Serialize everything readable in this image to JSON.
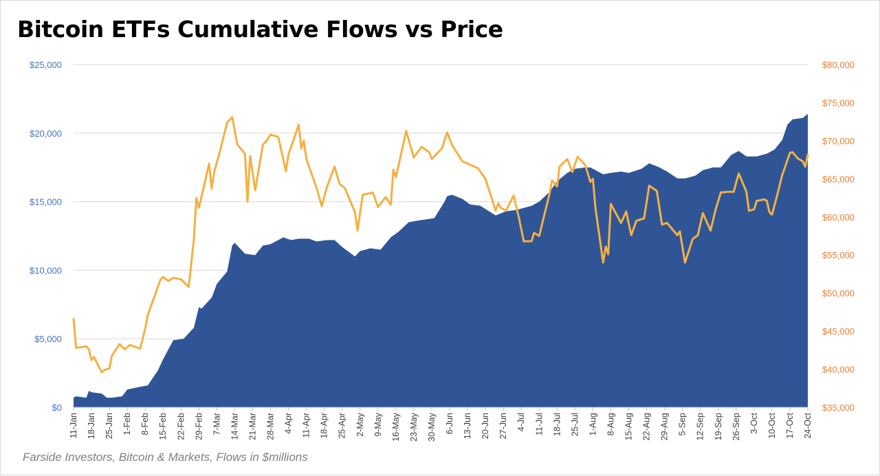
{
  "title": "Bitcoin ETFs Cumulative Flows vs Price",
  "footnote": "Farside Investors, Bitcoin & Markets, Flows in $millions",
  "colors": {
    "flows": "#2f5597",
    "price": "#f4b042",
    "left_axis": "#4472c4",
    "right_axis": "#ed7d31",
    "grid": "#d9d9d9"
  },
  "chart_data": {
    "type": "area",
    "title": "Bitcoin ETFs Cumulative Flows vs Price",
    "xlabel": "",
    "ylabel": "",
    "grid": true,
    "legend": "none",
    "x_tick_labels": [
      "11-Jan",
      "18-Jan",
      "25-Jan",
      "1-Feb",
      "8-Feb",
      "15-Feb",
      "22-Feb",
      "29-Feb",
      "7-Mar",
      "14-Mar",
      "21-Mar",
      "28-Mar",
      "4-Apr",
      "11-Apr",
      "18-Apr",
      "25-Apr",
      "2-May",
      "9-May",
      "16-May",
      "23-May",
      "30-May",
      "6-Jun",
      "13-Jun",
      "20-Jun",
      "27-Jun",
      "4-Jul",
      "11-Jul",
      "18-Jul",
      "25-Jul",
      "1-Aug",
      "8-Aug",
      "15-Aug",
      "22-Aug",
      "29-Aug",
      "5-Sep",
      "12-Sep",
      "19-Sep",
      "26-Sep",
      "3-Oct",
      "10-Oct",
      "17-Oct",
      "24-Oct"
    ],
    "x_range": [
      "2024-01-11",
      "2024-10-24"
    ],
    "y_left": {
      "ticks": [
        "$0",
        "$5,000",
        "$10,000",
        "$15,000",
        "$20,000",
        "$25,000"
      ],
      "ylim": [
        0,
        25000
      ]
    },
    "y_right": {
      "ticks": [
        "$35,000",
        "$40,000",
        "$45,000",
        "$50,000",
        "$55,000",
        "$60,000",
        "$65,000",
        "$70,000",
        "$75,000",
        "$80,000"
      ],
      "ylim": [
        35000,
        80000
      ]
    },
    "series": [
      {
        "kind": "area",
        "axis": "left",
        "points": [
          [
            "2024-01-11",
            700
          ],
          [
            "2024-01-12",
            800
          ],
          [
            "2024-01-16",
            700
          ],
          [
            "2024-01-17",
            1200
          ],
          [
            "2024-01-18",
            1100
          ],
          [
            "2024-01-22",
            1000
          ],
          [
            "2024-01-24",
            700
          ],
          [
            "2024-01-26",
            700
          ],
          [
            "2024-01-30",
            800
          ],
          [
            "2024-02-01",
            1300
          ],
          [
            "2024-02-06",
            1500
          ],
          [
            "2024-02-09",
            1600
          ],
          [
            "2024-02-13",
            2700
          ],
          [
            "2024-02-15",
            3500
          ],
          [
            "2024-02-19",
            4900
          ],
          [
            "2024-02-23",
            5000
          ],
          [
            "2024-02-27",
            5800
          ],
          [
            "2024-02-29",
            7300
          ],
          [
            "2024-03-01",
            7200
          ],
          [
            "2024-03-05",
            8000
          ],
          [
            "2024-03-07",
            9000
          ],
          [
            "2024-03-11",
            9900
          ],
          [
            "2024-03-13",
            11800
          ],
          [
            "2024-03-14",
            12000
          ],
          [
            "2024-03-18",
            11200
          ],
          [
            "2024-03-22",
            11100
          ],
          [
            "2024-03-25",
            11800
          ],
          [
            "2024-03-28",
            11900
          ],
          [
            "2024-04-02",
            12400
          ],
          [
            "2024-04-05",
            12200
          ],
          [
            "2024-04-08",
            12300
          ],
          [
            "2024-04-12",
            12300
          ],
          [
            "2024-04-15",
            12100
          ],
          [
            "2024-04-19",
            12200
          ],
          [
            "2024-04-22",
            12200
          ],
          [
            "2024-04-25",
            11700
          ],
          [
            "2024-04-30",
            11000
          ],
          [
            "2024-05-02",
            11400
          ],
          [
            "2024-05-06",
            11600
          ],
          [
            "2024-05-10",
            11500
          ],
          [
            "2024-05-14",
            12400
          ],
          [
            "2024-05-17",
            12800
          ],
          [
            "2024-05-21",
            13500
          ],
          [
            "2024-05-24",
            13600
          ],
          [
            "2024-05-31",
            13800
          ],
          [
            "2024-06-04",
            15000
          ],
          [
            "2024-06-05",
            15400
          ],
          [
            "2024-06-07",
            15500
          ],
          [
            "2024-06-11",
            15200
          ],
          [
            "2024-06-14",
            14800
          ],
          [
            "2024-06-18",
            14700
          ],
          [
            "2024-06-24",
            14000
          ],
          [
            "2024-06-28",
            14300
          ],
          [
            "2024-07-02",
            14400
          ],
          [
            "2024-07-08",
            14700
          ],
          [
            "2024-07-11",
            15000
          ],
          [
            "2024-07-15",
            15700
          ],
          [
            "2024-07-18",
            16500
          ],
          [
            "2024-07-22",
            17100
          ],
          [
            "2024-07-25",
            17400
          ],
          [
            "2024-07-29",
            17500
          ],
          [
            "2024-07-31",
            17500
          ],
          [
            "2024-08-01",
            17400
          ],
          [
            "2024-08-05",
            17000
          ],
          [
            "2024-08-08",
            17100
          ],
          [
            "2024-08-12",
            17200
          ],
          [
            "2024-08-15",
            17100
          ],
          [
            "2024-08-20",
            17400
          ],
          [
            "2024-08-23",
            17800
          ],
          [
            "2024-08-27",
            17500
          ],
          [
            "2024-08-30",
            17200
          ],
          [
            "2024-09-03",
            16700
          ],
          [
            "2024-09-06",
            16700
          ],
          [
            "2024-09-10",
            16900
          ],
          [
            "2024-09-13",
            17300
          ],
          [
            "2024-09-17",
            17500
          ],
          [
            "2024-09-20",
            17500
          ],
          [
            "2024-09-24",
            18400
          ],
          [
            "2024-09-27",
            18700
          ],
          [
            "2024-09-30",
            18300
          ],
          [
            "2024-10-04",
            18300
          ],
          [
            "2024-10-08",
            18500
          ],
          [
            "2024-10-11",
            18800
          ],
          [
            "2024-10-14",
            19500
          ],
          [
            "2024-10-16",
            20600
          ],
          [
            "2024-10-18",
            21000
          ],
          [
            "2024-10-22",
            21100
          ],
          [
            "2024-10-24",
            21400
          ]
        ]
      },
      {
        "kind": "line",
        "axis": "right",
        "points": [
          [
            "2024-01-11",
            46600
          ],
          [
            "2024-01-12",
            42800
          ],
          [
            "2024-01-16",
            43000
          ],
          [
            "2024-01-17",
            42600
          ],
          [
            "2024-01-18",
            41200
          ],
          [
            "2024-01-19",
            41600
          ],
          [
            "2024-01-22",
            39600
          ],
          [
            "2024-01-23",
            39900
          ],
          [
            "2024-01-25",
            40100
          ],
          [
            "2024-01-26",
            41800
          ],
          [
            "2024-01-29",
            43300
          ],
          [
            "2024-01-31",
            42600
          ],
          [
            "2024-02-02",
            43200
          ],
          [
            "2024-02-06",
            42700
          ],
          [
            "2024-02-08",
            45300
          ],
          [
            "2024-02-09",
            47100
          ],
          [
            "2024-02-12",
            49900
          ],
          [
            "2024-02-14",
            51800
          ],
          [
            "2024-02-15",
            52100
          ],
          [
            "2024-02-17",
            51600
          ],
          [
            "2024-02-19",
            52000
          ],
          [
            "2024-02-22",
            51800
          ],
          [
            "2024-02-25",
            50800
          ],
          [
            "2024-02-27",
            57000
          ],
          [
            "2024-02-28",
            62500
          ],
          [
            "2024-02-29",
            61200
          ],
          [
            "2024-03-04",
            67000
          ],
          [
            "2024-03-05",
            63700
          ],
          [
            "2024-03-06",
            66000
          ],
          [
            "2024-03-08",
            68300
          ],
          [
            "2024-03-11",
            72400
          ],
          [
            "2024-03-13",
            73100
          ],
          [
            "2024-03-15",
            69500
          ],
          [
            "2024-03-18",
            68300
          ],
          [
            "2024-03-19",
            62000
          ],
          [
            "2024-03-20",
            68000
          ],
          [
            "2024-03-22",
            63500
          ],
          [
            "2024-03-25",
            69500
          ],
          [
            "2024-03-26",
            69800
          ],
          [
            "2024-03-28",
            70800
          ],
          [
            "2024-03-31",
            70500
          ],
          [
            "2024-04-03",
            66000
          ],
          [
            "2024-04-04",
            68200
          ],
          [
            "2024-04-08",
            72100
          ],
          [
            "2024-04-09",
            69000
          ],
          [
            "2024-04-10",
            70000
          ],
          [
            "2024-04-11",
            67600
          ],
          [
            "2024-04-15",
            63800
          ],
          [
            "2024-04-17",
            61400
          ],
          [
            "2024-04-19",
            63900
          ],
          [
            "2024-04-22",
            66600
          ],
          [
            "2024-04-24",
            64300
          ],
          [
            "2024-04-26",
            63800
          ],
          [
            "2024-04-30",
            60600
          ],
          [
            "2024-05-01",
            58200
          ],
          [
            "2024-05-03",
            62900
          ],
          [
            "2024-05-07",
            63200
          ],
          [
            "2024-05-09",
            61300
          ],
          [
            "2024-05-12",
            62600
          ],
          [
            "2024-05-14",
            61600
          ],
          [
            "2024-05-15",
            66200
          ],
          [
            "2024-05-16",
            65200
          ],
          [
            "2024-05-20",
            71300
          ],
          [
            "2024-05-23",
            67800
          ],
          [
            "2024-05-26",
            69200
          ],
          [
            "2024-05-29",
            68500
          ],
          [
            "2024-05-30",
            67600
          ],
          [
            "2024-06-03",
            69000
          ],
          [
            "2024-06-05",
            71100
          ],
          [
            "2024-06-07",
            69400
          ],
          [
            "2024-06-11",
            67300
          ],
          [
            "2024-06-13",
            67000
          ],
          [
            "2024-06-17",
            66400
          ],
          [
            "2024-06-20",
            65000
          ],
          [
            "2024-06-24",
            60800
          ],
          [
            "2024-06-25",
            61800
          ],
          [
            "2024-06-26",
            61200
          ],
          [
            "2024-06-28",
            60800
          ],
          [
            "2024-07-01",
            62800
          ],
          [
            "2024-07-03",
            60000
          ],
          [
            "2024-07-05",
            56800
          ],
          [
            "2024-07-08",
            56800
          ],
          [
            "2024-07-09",
            57900
          ],
          [
            "2024-07-11",
            57500
          ],
          [
            "2024-07-15",
            63000
          ],
          [
            "2024-07-16",
            64800
          ],
          [
            "2024-07-18",
            64000
          ],
          [
            "2024-07-19",
            66600
          ],
          [
            "2024-07-22",
            67600
          ],
          [
            "2024-07-24",
            65900
          ],
          [
            "2024-07-26",
            67900
          ],
          [
            "2024-07-29",
            66800
          ],
          [
            "2024-07-31",
            64600
          ],
          [
            "2024-08-01",
            65000
          ],
          [
            "2024-08-02",
            61200
          ],
          [
            "2024-08-05",
            54000
          ],
          [
            "2024-08-06",
            56100
          ],
          [
            "2024-08-07",
            55100
          ],
          [
            "2024-08-08",
            61700
          ],
          [
            "2024-08-12",
            59200
          ],
          [
            "2024-08-14",
            60700
          ],
          [
            "2024-08-16",
            57600
          ],
          [
            "2024-08-18",
            59500
          ],
          [
            "2024-08-21",
            59800
          ],
          [
            "2024-08-23",
            64100
          ],
          [
            "2024-08-26",
            63400
          ],
          [
            "2024-08-28",
            59000
          ],
          [
            "2024-08-30",
            59200
          ],
          [
            "2024-09-03",
            57600
          ],
          [
            "2024-09-04",
            58100
          ],
          [
            "2024-09-06",
            54000
          ],
          [
            "2024-09-09",
            57100
          ],
          [
            "2024-09-11",
            57600
          ],
          [
            "2024-09-13",
            60500
          ],
          [
            "2024-09-16",
            58200
          ],
          [
            "2024-09-18",
            61000
          ],
          [
            "2024-09-20",
            63200
          ],
          [
            "2024-09-23",
            63300
          ],
          [
            "2024-09-25",
            63300
          ],
          [
            "2024-09-27",
            65700
          ],
          [
            "2024-09-30",
            63300
          ],
          [
            "2024-10-01",
            60800
          ],
          [
            "2024-10-03",
            61000
          ],
          [
            "2024-10-04",
            62100
          ],
          [
            "2024-10-07",
            62300
          ],
          [
            "2024-10-08",
            62100
          ],
          [
            "2024-10-09",
            60600
          ],
          [
            "2024-10-10",
            60300
          ],
          [
            "2024-10-12",
            62800
          ],
          [
            "2024-10-14",
            65500
          ],
          [
            "2024-10-17",
            68400
          ],
          [
            "2024-10-18",
            68500
          ],
          [
            "2024-10-20",
            67700
          ],
          [
            "2024-10-22",
            67300
          ],
          [
            "2024-10-23",
            66600
          ],
          [
            "2024-10-24",
            68200
          ]
        ]
      }
    ]
  }
}
